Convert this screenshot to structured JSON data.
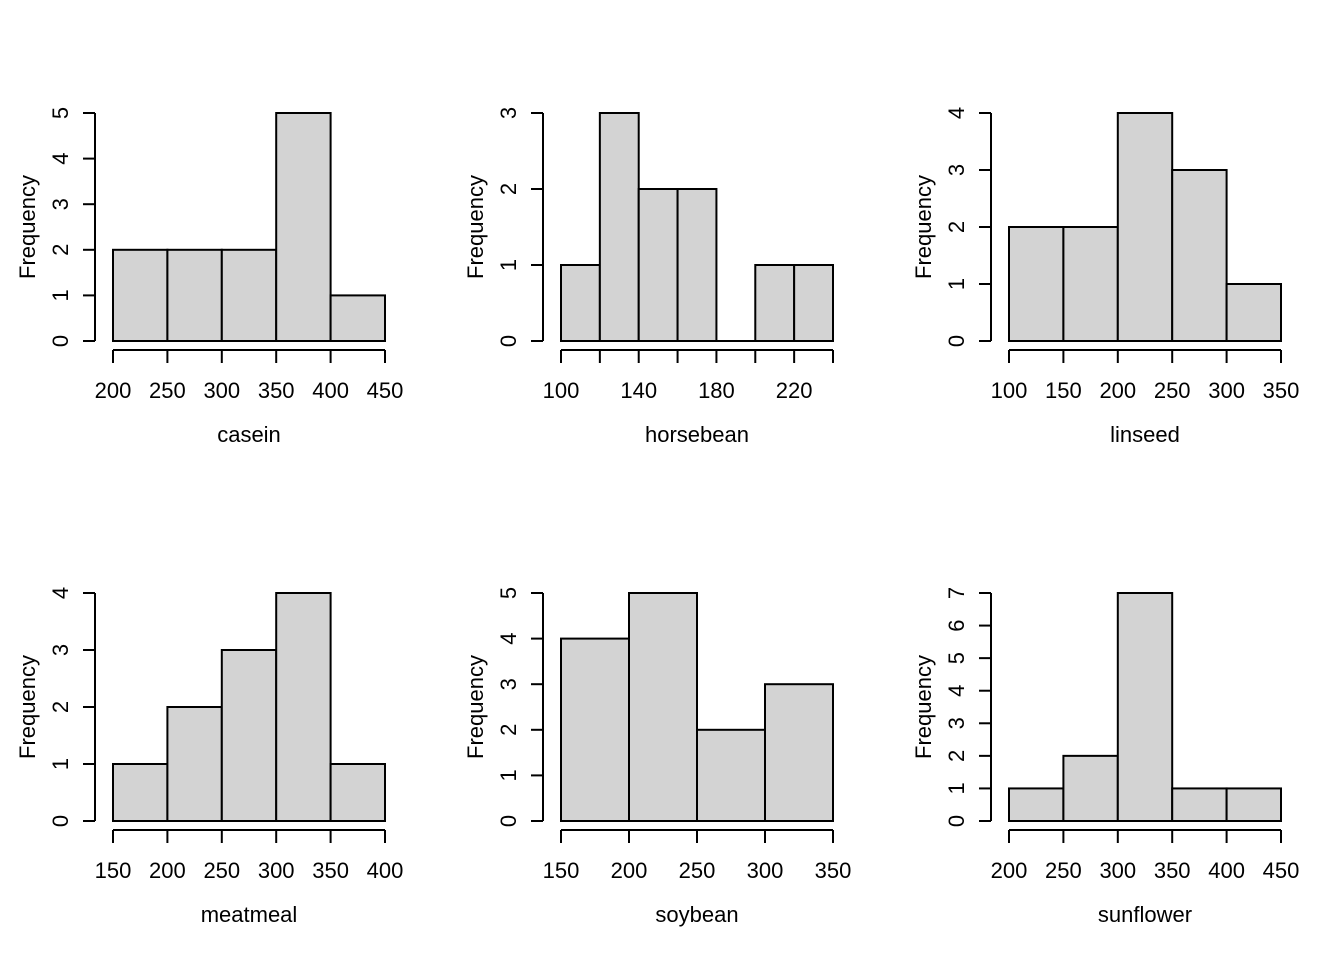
{
  "figure": {
    "background": "#ffffff",
    "bar_fill": "#d3d3d3",
    "bar_stroke": "#000000",
    "axis_color": "#000000",
    "text_color": "#000000",
    "ylabel": "Frequency"
  },
  "chart_data": [
    {
      "type": "bar",
      "subtype": "histogram",
      "title": "casein",
      "xlabel": "casein",
      "ylabel": "Frequency",
      "bin_start": 200,
      "bin_width": 50,
      "counts": [
        2,
        2,
        2,
        5,
        1
      ],
      "x_ticks": [
        200,
        250,
        300,
        350,
        400,
        450
      ],
      "x_tick_labels": [
        "200",
        "250",
        "300",
        "350",
        "400",
        "450"
      ],
      "y_ticks": [
        0,
        1,
        2,
        3,
        4,
        5
      ],
      "xlim": [
        200,
        450
      ],
      "ylim": [
        0,
        5
      ]
    },
    {
      "type": "bar",
      "subtype": "histogram",
      "title": "horsebean",
      "xlabel": "horsebean",
      "ylabel": "Frequency",
      "bin_start": 100,
      "bin_width": 20,
      "counts": [
        1,
        3,
        2,
        2,
        0,
        1,
        1
      ],
      "x_ticks": [
        100,
        120,
        140,
        160,
        180,
        200,
        220,
        240
      ],
      "x_tick_labels": [
        "100",
        "",
        "140",
        "",
        "180",
        "",
        "220",
        ""
      ],
      "y_ticks": [
        0,
        1,
        2,
        3
      ],
      "xlim": [
        100,
        240
      ],
      "ylim": [
        0,
        3
      ]
    },
    {
      "type": "bar",
      "subtype": "histogram",
      "title": "linseed",
      "xlabel": "linseed",
      "ylabel": "Frequency",
      "bin_start": 100,
      "bin_width": 50,
      "counts": [
        2,
        2,
        4,
        3,
        1
      ],
      "x_ticks": [
        100,
        150,
        200,
        250,
        300,
        350
      ],
      "x_tick_labels": [
        "100",
        "150",
        "200",
        "250",
        "300",
        "350"
      ],
      "y_ticks": [
        0,
        1,
        2,
        3,
        4
      ],
      "xlim": [
        100,
        350
      ],
      "ylim": [
        0,
        4
      ]
    },
    {
      "type": "bar",
      "subtype": "histogram",
      "title": "meatmeal",
      "xlabel": "meatmeal",
      "ylabel": "Frequency",
      "bin_start": 150,
      "bin_width": 50,
      "counts": [
        1,
        2,
        3,
        4,
        1
      ],
      "x_ticks": [
        150,
        200,
        250,
        300,
        350,
        400
      ],
      "x_tick_labels": [
        "150",
        "200",
        "250",
        "300",
        "350",
        "400"
      ],
      "y_ticks": [
        0,
        1,
        2,
        3,
        4
      ],
      "xlim": [
        150,
        400
      ],
      "ylim": [
        0,
        4
      ]
    },
    {
      "type": "bar",
      "subtype": "histogram",
      "title": "soybean",
      "xlabel": "soybean",
      "ylabel": "Frequency",
      "bin_start": 150,
      "bin_width": 50,
      "counts": [
        4,
        5,
        2,
        3
      ],
      "x_ticks": [
        150,
        200,
        250,
        300,
        350
      ],
      "x_tick_labels": [
        "150",
        "200",
        "250",
        "300",
        "350"
      ],
      "y_ticks": [
        0,
        1,
        2,
        3,
        4,
        5
      ],
      "xlim": [
        150,
        350
      ],
      "ylim": [
        0,
        5
      ]
    },
    {
      "type": "bar",
      "subtype": "histogram",
      "title": "sunflower",
      "xlabel": "sunflower",
      "ylabel": "Frequency",
      "bin_start": 200,
      "bin_width": 50,
      "counts": [
        1,
        2,
        7,
        1,
        1
      ],
      "x_ticks": [
        200,
        250,
        300,
        350,
        400,
        450
      ],
      "x_tick_labels": [
        "200",
        "250",
        "300",
        "350",
        "400",
        "450"
      ],
      "y_ticks": [
        0,
        1,
        2,
        3,
        4,
        5,
        6,
        7
      ],
      "xlim": [
        200,
        450
      ],
      "ylim": [
        0,
        7
      ]
    }
  ]
}
